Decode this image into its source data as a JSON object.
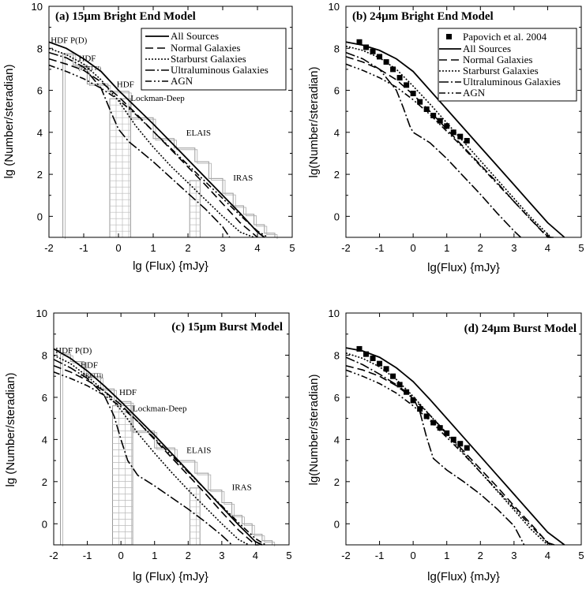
{
  "figure": {
    "xlabel_15": "lg (Flux)  {mJy}",
    "xlabel_24": "lg(Flux)  {mJy}",
    "ylabel_15": "lg (Number/steradian)",
    "ylabel_24": "lg(Number/steradian)"
  },
  "legend_labels": {
    "papovich": "Papovich et al. 2004",
    "all": "All Sources",
    "normal": "Normal Galaxies",
    "starburst": "Starburst Galaxies",
    "ulirg": "Ultraluminous Galaxies",
    "agn": "AGN"
  },
  "chart_data": [
    {
      "type": "line",
      "id": "a",
      "title": "(a) 15µm Bright End Model",
      "xlabel": "lg (Flux)  {mJy}",
      "ylabel": "lg (Number/steradian)",
      "xlim": [
        -2,
        5
      ],
      "ylim": [
        -1,
        10
      ],
      "xticks": [
        -2,
        -1,
        0,
        1,
        2,
        3,
        4,
        5
      ],
      "yticks": [
        0,
        2,
        4,
        6,
        8,
        10
      ],
      "legend": [
        "All Sources",
        "Normal Galaxies",
        "Starburst Galaxies",
        "Ultraluminous Galaxies",
        "AGN"
      ],
      "annotations": [
        {
          "text": "HDF P(D)",
          "x": -1.95,
          "y": 8.25
        },
        {
          "text": "HDF",
          "x": -1.15,
          "y": 7.4
        },
        {
          "text": "(PRETTI)",
          "x": -1.15,
          "y": 6.95,
          "small": true
        },
        {
          "text": "HDF",
          "x": -0.05,
          "y": 6.15
        },
        {
          "text": "Lockman-Deep",
          "x": 0.35,
          "y": 5.5
        },
        {
          "text": "ELAIS",
          "x": 1.95,
          "y": 3.85
        },
        {
          "text": "IRAS",
          "x": 3.3,
          "y": 1.7
        }
      ],
      "series": [
        {
          "name": "All Sources",
          "x": [
            -2,
            -1.5,
            -1,
            -0.5,
            0,
            0.5,
            1,
            1.5,
            2,
            2.5,
            3,
            3.5,
            4,
            4.2
          ],
          "y": [
            8.3,
            8.0,
            7.5,
            6.9,
            6.0,
            5.2,
            4.4,
            3.55,
            2.7,
            1.85,
            1.0,
            0.15,
            -0.75,
            -1
          ]
        },
        {
          "name": "Normal Galaxies",
          "x": [
            -2,
            -1.5,
            -1,
            -0.5,
            0,
            0.5,
            1,
            1.5,
            2,
            2.5,
            3,
            3.5,
            4
          ],
          "y": [
            7.5,
            7.25,
            6.95,
            6.4,
            5.7,
            4.9,
            4.05,
            3.2,
            2.35,
            1.5,
            0.6,
            -0.3,
            -1
          ]
        },
        {
          "name": "Starburst Galaxies",
          "x": [
            -2,
            -1.5,
            -1,
            -0.5,
            0,
            0.5,
            1,
            1.5,
            2,
            2.5,
            3,
            3.5,
            3.9
          ],
          "y": [
            8.0,
            7.7,
            7.25,
            6.5,
            5.5,
            4.3,
            3.3,
            2.4,
            1.6,
            0.8,
            0.0,
            -0.75,
            -1
          ]
        },
        {
          "name": "Ultraluminous Galaxies",
          "x": [
            -2,
            -1.5,
            -1,
            -0.5,
            -0.2,
            0,
            0.3,
            0.6,
            1,
            1.5,
            2,
            2.5,
            3,
            3.2
          ],
          "y": [
            7.8,
            7.55,
            7.1,
            6.1,
            4.9,
            4.15,
            3.55,
            3.15,
            2.6,
            1.85,
            1.1,
            0.35,
            -0.5,
            -1
          ]
        },
        {
          "name": "AGN",
          "x": [
            -2,
            -1.5,
            -1,
            -0.5,
            0,
            0.5,
            1,
            1.5,
            2,
            2.5,
            3,
            3.5,
            4,
            4.3
          ],
          "y": [
            7.2,
            6.9,
            6.55,
            6.1,
            5.55,
            4.85,
            4.05,
            3.25,
            2.45,
            1.65,
            0.85,
            0.05,
            -0.7,
            -1
          ]
        }
      ]
    },
    {
      "type": "line",
      "id": "b",
      "title": "(b) 24µm Bright End Model",
      "xlabel": "lg(Flux)  {mJy}",
      "ylabel": "lg(Number/steradian)",
      "xlim": [
        -2,
        5
      ],
      "ylim": [
        -1,
        10
      ],
      "xticks": [
        -2,
        -1,
        0,
        1,
        2,
        3,
        4,
        5
      ],
      "yticks": [
        0,
        2,
        4,
        6,
        8,
        10
      ],
      "legend": [
        "Papovich et al. 2004",
        "All Sources",
        "Normal Galaxies",
        "Starburst Galaxies",
        "Ultraluminous Galaxies",
        "AGN"
      ],
      "points": {
        "name": "Papovich et al. 2004",
        "x": [
          -1.6,
          -1.4,
          -1.2,
          -1.0,
          -0.8,
          -0.6,
          -0.4,
          -0.2,
          0.0,
          0.2,
          0.4,
          0.6,
          0.8,
          1.0,
          1.2,
          1.4,
          1.6
        ],
        "y": [
          8.3,
          8.05,
          7.85,
          7.6,
          7.35,
          7.0,
          6.6,
          6.25,
          5.85,
          5.45,
          5.1,
          4.8,
          4.55,
          4.3,
          4.0,
          3.8,
          3.6
        ]
      },
      "series": [
        {
          "name": "All Sources",
          "x": [
            -2,
            -1.5,
            -1,
            -0.5,
            0,
            0.5,
            1,
            1.5,
            2,
            2.5,
            3,
            3.5,
            4,
            4.5
          ],
          "y": [
            8.3,
            8.15,
            7.9,
            7.5,
            6.9,
            6.0,
            5.1,
            4.2,
            3.3,
            2.4,
            1.5,
            0.6,
            -0.3,
            -1.1
          ]
        },
        {
          "name": "Normal Galaxies",
          "x": [
            -2,
            -1.5,
            -1,
            -0.5,
            0,
            0.5,
            1,
            1.5,
            2,
            2.5,
            3,
            3.5,
            4,
            4.2
          ],
          "y": [
            7.6,
            7.35,
            7.0,
            6.5,
            5.8,
            5.0,
            4.15,
            3.3,
            2.45,
            1.6,
            0.7,
            -0.15,
            -1.0,
            -1.2
          ]
        },
        {
          "name": "Starburst Galaxies",
          "x": [
            -2,
            -1.5,
            -1,
            -0.5,
            0,
            0.5,
            1,
            1.5,
            2,
            2.5,
            3,
            3.5,
            4.1
          ],
          "y": [
            8.1,
            7.9,
            7.55,
            7.0,
            6.2,
            5.35,
            4.45,
            3.55,
            2.65,
            1.75,
            0.85,
            -0.05,
            -1.1
          ]
        },
        {
          "name": "Ultraluminous Galaxies",
          "x": [
            -2,
            -1.5,
            -1,
            -0.5,
            -0.3,
            -0.1,
            0,
            0.5,
            1,
            1.5,
            2,
            2.5,
            3,
            3.2
          ],
          "y": [
            7.8,
            7.5,
            7.0,
            6.0,
            5.2,
            4.3,
            4.0,
            3.5,
            2.75,
            1.9,
            1.05,
            0.15,
            -0.7,
            -1.1
          ]
        },
        {
          "name": "AGN",
          "x": [
            -2,
            -1.5,
            -1,
            -0.5,
            0,
            0.5,
            1,
            1.5,
            2,
            2.5,
            3,
            3.5,
            4,
            4.1
          ],
          "y": [
            7.25,
            6.95,
            6.6,
            6.15,
            5.55,
            4.85,
            4.05,
            3.25,
            2.4,
            1.55,
            0.7,
            -0.15,
            -0.95,
            -1.1
          ]
        }
      ]
    },
    {
      "type": "line",
      "id": "c",
      "title": "(c) 15µm Burst Model",
      "xlabel": "lg (Flux)  {mJy}",
      "ylabel": "lg (Number/steradian)",
      "xlim": [
        -2,
        5
      ],
      "ylim": [
        -1,
        10
      ],
      "xticks": [
        -2,
        -1,
        0,
        1,
        2,
        3,
        4,
        5
      ],
      "yticks": [
        0,
        2,
        4,
        6,
        8,
        10
      ],
      "annotations": [
        {
          "text": "HDF P(D)",
          "x": -1.95,
          "y": 8.1
        },
        {
          "text": "HDF",
          "x": -1.2,
          "y": 7.4
        },
        {
          "text": "(PRETTI)",
          "x": -1.2,
          "y": 6.95,
          "small": true
        },
        {
          "text": "HDF",
          "x": -0.05,
          "y": 6.1
        },
        {
          "text": "Lockman-Deep",
          "x": 0.35,
          "y": 5.35
        },
        {
          "text": "ELAIS",
          "x": 1.95,
          "y": 3.35
        },
        {
          "text": "IRAS",
          "x": 3.3,
          "y": 1.6
        }
      ],
      "series": [
        {
          "name": "All Sources",
          "x": [
            -2,
            -1.5,
            -1,
            -0.5,
            0,
            0.5,
            1,
            1.5,
            2,
            2.5,
            3,
            3.5,
            4,
            4.2
          ],
          "y": [
            8.3,
            7.85,
            7.25,
            6.55,
            5.8,
            5.0,
            4.2,
            3.35,
            2.5,
            1.65,
            0.8,
            -0.05,
            -0.85,
            -1.05
          ]
        },
        {
          "name": "Normal Galaxies",
          "x": [
            -2,
            -1.5,
            -1,
            -0.5,
            0,
            0.5,
            1,
            1.5,
            2,
            2.5,
            3,
            3.5,
            4,
            4.1
          ],
          "y": [
            7.5,
            7.2,
            6.8,
            6.3,
            5.65,
            4.85,
            4.0,
            3.15,
            2.3,
            1.45,
            0.55,
            -0.3,
            -1.0,
            -1.1
          ]
        },
        {
          "name": "Starburst Galaxies",
          "x": [
            -2,
            -1.5,
            -1,
            -0.5,
            0,
            0.5,
            1,
            1.5,
            2,
            2.5,
            3,
            3.5,
            3.8
          ],
          "y": [
            8.0,
            7.6,
            7.0,
            6.3,
            5.4,
            4.3,
            3.35,
            2.45,
            1.6,
            0.8,
            0.0,
            -0.75,
            -1.05
          ]
        },
        {
          "name": "Ultraluminous Galaxies",
          "x": [
            -2,
            -1.5,
            -1,
            -0.5,
            -0.2,
            0,
            0.2,
            0.5,
            1,
            1.5,
            2,
            2.5,
            3,
            3.3
          ],
          "y": [
            7.8,
            7.4,
            6.9,
            6.1,
            5.1,
            4.0,
            3.0,
            2.3,
            1.8,
            1.25,
            0.7,
            0.1,
            -0.55,
            -1.05
          ]
        },
        {
          "name": "AGN",
          "x": [
            -2,
            -1.5,
            -1,
            -0.5,
            0,
            0.5,
            1,
            1.5,
            2,
            2.5,
            3,
            3.5,
            4,
            4.3
          ],
          "y": [
            7.2,
            6.9,
            6.55,
            6.1,
            5.55,
            4.85,
            4.05,
            3.25,
            2.45,
            1.65,
            0.85,
            0.05,
            -0.7,
            -1.05
          ]
        }
      ]
    },
    {
      "type": "line",
      "id": "d",
      "title": "(d) 24µm Burst Model",
      "xlabel": "lg(Flux)  {mJy}",
      "ylabel": "lg(Number/steradian)",
      "xlim": [
        -2,
        5
      ],
      "ylim": [
        -1,
        10
      ],
      "xticks": [
        -2,
        -1,
        0,
        1,
        2,
        3,
        4,
        5
      ],
      "yticks": [
        0,
        2,
        4,
        6,
        8,
        10
      ],
      "points": {
        "name": "Papovich et al. 2004",
        "x": [
          -1.6,
          -1.4,
          -1.2,
          -1.0,
          -0.8,
          -0.6,
          -0.4,
          -0.2,
          0.0,
          0.2,
          0.4,
          0.6,
          0.8,
          1.0,
          1.2,
          1.4,
          1.6
        ],
        "y": [
          8.3,
          8.05,
          7.85,
          7.6,
          7.35,
          7.0,
          6.6,
          6.25,
          5.85,
          5.45,
          5.1,
          4.8,
          4.55,
          4.3,
          4.0,
          3.8,
          3.6
        ]
      },
      "series": [
        {
          "name": "All Sources",
          "x": [
            -2,
            -1.5,
            -1,
            -0.5,
            0,
            0.5,
            1,
            1.5,
            2,
            2.5,
            3,
            3.5,
            4,
            4.5
          ],
          "y": [
            8.35,
            8.2,
            7.9,
            7.4,
            6.75,
            5.9,
            5.0,
            4.1,
            3.2,
            2.3,
            1.4,
            0.5,
            -0.4,
            -1.1
          ]
        },
        {
          "name": "Normal Galaxies",
          "x": [
            -2,
            -1.5,
            -1,
            -0.5,
            0,
            0.5,
            1,
            1.5,
            2,
            2.5,
            3,
            3.5,
            4,
            4.2
          ],
          "y": [
            7.5,
            7.3,
            7.0,
            6.55,
            5.95,
            5.15,
            4.3,
            3.45,
            2.6,
            1.75,
            0.85,
            0.0,
            -0.9,
            -1.15
          ]
        },
        {
          "name": "Starburst Galaxies",
          "x": [
            -2,
            -1.5,
            -1,
            -0.5,
            0,
            0.5,
            1,
            1.5,
            2,
            2.5,
            3,
            3.5,
            4.0
          ],
          "y": [
            8.1,
            7.85,
            7.45,
            6.85,
            6.05,
            5.15,
            4.25,
            3.35,
            2.45,
            1.55,
            0.65,
            -0.25,
            -1.1
          ]
        },
        {
          "name": "Ultraluminous Galaxies",
          "x": [
            -2,
            -1.5,
            -1,
            -0.5,
            0,
            0.2,
            0.4,
            0.6,
            1,
            1.5,
            2,
            2.5,
            3,
            3.3
          ],
          "y": [
            7.9,
            7.55,
            7.1,
            6.6,
            6.0,
            5.3,
            4.1,
            3.1,
            2.55,
            2.0,
            1.4,
            0.7,
            -0.1,
            -1.0
          ]
        },
        {
          "name": "AGN",
          "x": [
            -2,
            -1.5,
            -1,
            -0.5,
            0,
            0.5,
            1,
            1.5,
            2,
            2.5,
            3,
            3.5,
            4,
            4.1
          ],
          "y": [
            7.3,
            7.0,
            6.65,
            6.2,
            5.6,
            4.9,
            4.1,
            3.3,
            2.45,
            1.6,
            0.75,
            -0.1,
            -0.9,
            -1.05
          ]
        }
      ]
    }
  ]
}
